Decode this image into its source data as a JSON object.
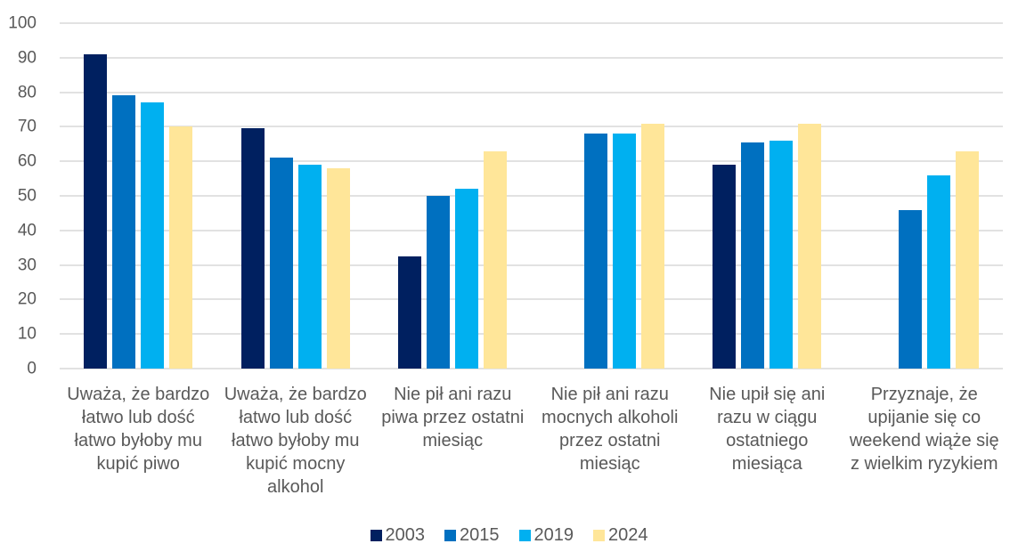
{
  "chart_data": {
    "type": "bar",
    "title": "",
    "categories": [
      "Uważa, że bardzo łatwo lub dość łatwo byłoby mu kupić piwo",
      "Uważa, że bardzo łatwo lub dość łatwo byłoby mu kupić mocny alkohol",
      "Nie pił ani razu piwa przez ostatni miesiąc",
      "Nie pił ani razu mocnych alkoholi przez ostatni miesiąc",
      "Nie upił się ani razu w ciągu ostatniego miesiąca",
      "Przyznaje, że upijanie się co weekend wiąże się z wielkim ryzykiem"
    ],
    "categories_lines": [
      [
        "Uważa, że bardzo",
        "łatwo lub dość",
        "łatwo byłoby mu",
        "kupić piwo"
      ],
      [
        "Uważa, że bardzo",
        "łatwo lub dość",
        "łatwo byłoby mu",
        "kupić mocny",
        "alkohol"
      ],
      [
        "Nie pił ani razu",
        "piwa przez ostatni",
        "miesiąc"
      ],
      [
        "Nie pił ani razu",
        "mocnych alkoholi",
        "przez ostatni",
        "miesiąc"
      ],
      [
        "Nie upił się ani",
        "razu w ciągu",
        "ostatniego",
        "miesiąca"
      ],
      [
        "Przyznaje, że",
        "upijanie się co",
        "weekend wiąże się",
        "z wielkim ryzykiem"
      ]
    ],
    "series": [
      {
        "name": "2003",
        "color": "#002060",
        "values": [
          91,
          69.5,
          32.5,
          null,
          59,
          null
        ]
      },
      {
        "name": "2015",
        "color": "#0070C0",
        "values": [
          79,
          61,
          50,
          68,
          65.5,
          46
        ]
      },
      {
        "name": "2019",
        "color": "#00B0F0",
        "values": [
          77,
          59,
          52,
          68,
          66,
          56
        ]
      },
      {
        "name": "2024",
        "color": "#FFE699",
        "values": [
          70,
          58,
          63,
          71,
          71,
          63
        ]
      }
    ],
    "ylim": [
      0,
      100
    ],
    "yticks": [
      0,
      10,
      20,
      30,
      40,
      50,
      60,
      70,
      80,
      90,
      100
    ],
    "xlabel": "",
    "ylabel": "",
    "grid": true,
    "legend_position": "bottom",
    "text_color": "#595959",
    "gridline_color": "#E2E2E2",
    "background_color": "#FFFFFF"
  }
}
